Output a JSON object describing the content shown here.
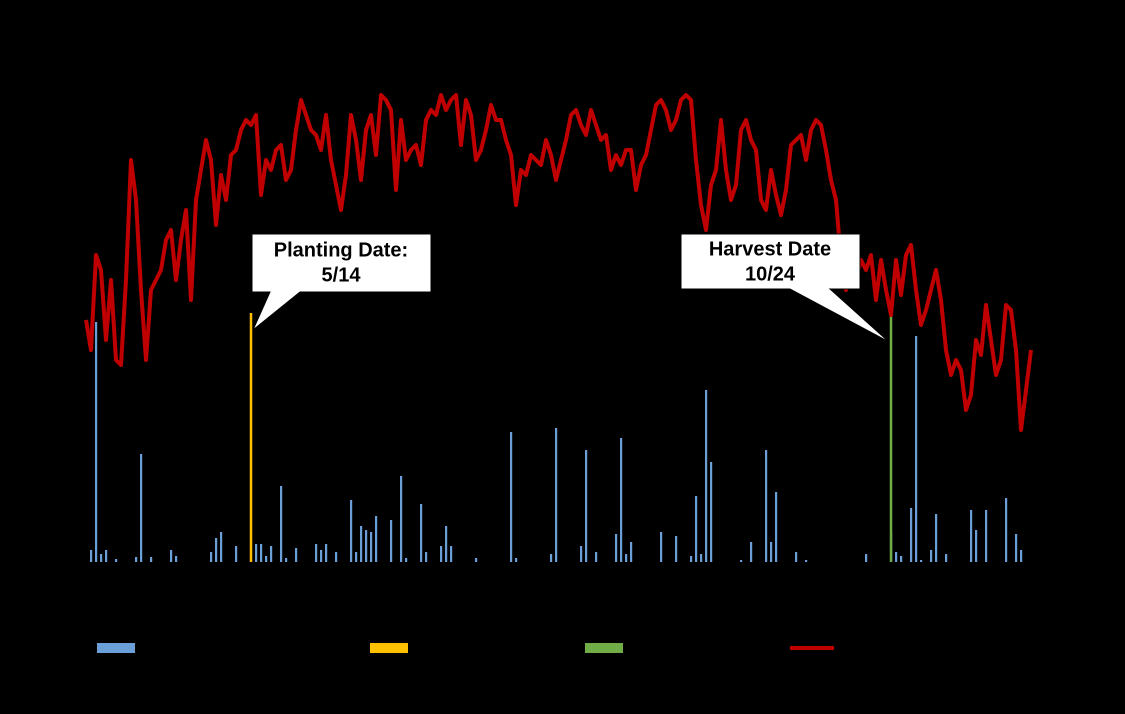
{
  "chart_data": {
    "type": "combo",
    "ylim": [
      0,
      500
    ],
    "series": [
      {
        "type": "bar",
        "color": "#6a9fd8",
        "values": [
          0,
          12,
          240,
          8,
          12,
          0,
          3,
          0,
          0,
          0,
          5,
          108,
          0,
          5,
          0,
          0,
          0,
          12,
          6,
          0,
          0,
          0,
          0,
          0,
          0,
          10,
          24,
          30,
          0,
          0,
          16,
          0,
          0,
          0,
          18,
          18,
          6,
          16,
          0,
          76,
          4,
          0,
          14,
          0,
          0,
          0,
          18,
          12,
          18,
          0,
          10,
          0,
          0,
          62,
          10,
          36,
          32,
          30,
          46,
          0,
          0,
          42,
          0,
          86,
          4,
          0,
          0,
          58,
          10,
          0,
          0,
          16,
          36,
          16,
          0,
          0,
          0,
          0,
          4,
          0,
          0,
          0,
          0,
          0,
          0,
          130,
          4,
          0,
          0,
          0,
          0,
          0,
          0,
          8,
          134,
          0,
          0,
          0,
          0,
          16,
          112,
          0,
          10,
          0,
          0,
          0,
          28,
          124,
          8,
          20,
          0,
          0,
          0,
          0,
          0,
          30,
          0,
          0,
          26,
          0,
          0,
          6,
          66,
          8,
          172,
          100,
          0,
          0,
          0,
          0,
          0,
          2,
          0,
          20,
          0,
          0,
          112,
          20,
          70,
          0,
          0,
          0,
          10,
          0,
          2,
          0,
          0,
          0,
          0,
          0,
          0,
          0,
          0,
          0,
          0,
          0,
          8,
          0,
          0,
          0,
          0,
          30,
          10,
          6,
          0,
          54,
          226,
          2,
          0,
          12,
          48,
          0,
          8,
          0,
          0,
          0,
          0,
          52,
          32,
          0,
          52,
          0,
          0,
          0,
          64,
          0,
          28,
          12,
          0,
          0
        ]
      },
      {
        "type": "marker",
        "color": "#ffc000",
        "values": [
          null,
          null,
          null,
          null,
          null,
          null,
          null,
          null,
          null,
          null,
          null,
          null,
          null,
          null,
          null,
          null,
          null,
          null,
          null,
          null,
          null,
          null,
          null,
          null,
          null,
          null,
          null,
          null,
          null,
          null,
          null,
          null,
          null,
          249,
          null,
          null,
          null,
          null,
          null,
          null,
          null,
          null,
          null,
          null,
          null,
          null,
          null,
          null,
          null,
          null,
          null,
          null,
          null,
          null,
          null,
          null,
          null,
          null,
          null,
          null,
          null,
          null,
          null,
          null,
          null,
          null,
          null,
          null,
          null,
          null,
          null,
          null,
          null,
          null,
          null,
          null,
          null,
          null,
          null,
          null,
          null,
          null,
          null,
          null,
          null,
          null,
          null,
          null,
          null,
          null,
          null,
          null,
          null,
          null,
          null,
          null,
          null,
          null,
          null,
          null,
          null,
          null,
          null,
          null,
          null,
          null,
          null,
          null,
          null,
          null,
          null,
          null,
          null,
          null,
          null,
          null,
          null,
          null,
          null,
          null,
          null,
          null,
          null,
          null,
          null,
          null,
          null,
          null,
          null,
          null,
          null,
          null,
          null,
          null,
          null,
          null,
          null,
          null,
          null,
          null,
          null,
          null,
          null,
          null,
          null,
          null,
          null,
          null,
          null,
          null,
          null,
          null,
          null,
          null,
          null,
          null,
          null,
          null,
          null,
          null,
          null,
          null,
          null,
          null,
          null,
          null,
          null,
          null,
          null,
          null,
          null,
          null,
          null,
          null,
          null,
          null,
          null,
          null,
          null,
          null,
          null,
          null,
          null,
          null,
          null,
          null,
          null,
          null,
          null,
          null
        ]
      },
      {
        "type": "marker",
        "color": "#70ad47",
        "values": [
          null,
          null,
          null,
          null,
          null,
          null,
          null,
          null,
          null,
          null,
          null,
          null,
          null,
          null,
          null,
          null,
          null,
          null,
          null,
          null,
          null,
          null,
          null,
          null,
          null,
          null,
          null,
          null,
          null,
          null,
          null,
          null,
          null,
          null,
          null,
          null,
          null,
          null,
          null,
          null,
          null,
          null,
          null,
          null,
          null,
          null,
          null,
          null,
          null,
          null,
          null,
          null,
          null,
          null,
          null,
          null,
          null,
          null,
          null,
          null,
          null,
          null,
          null,
          null,
          null,
          null,
          null,
          null,
          null,
          null,
          null,
          null,
          null,
          null,
          null,
          null,
          null,
          null,
          null,
          null,
          null,
          null,
          null,
          null,
          null,
          null,
          null,
          null,
          null,
          null,
          null,
          null,
          null,
          null,
          null,
          null,
          null,
          null,
          null,
          null,
          null,
          null,
          null,
          null,
          null,
          null,
          null,
          null,
          null,
          null,
          null,
          null,
          null,
          null,
          null,
          null,
          null,
          null,
          null,
          null,
          null,
          null,
          null,
          null,
          null,
          null,
          null,
          null,
          null,
          null,
          null,
          null,
          null,
          null,
          null,
          null,
          null,
          null,
          null,
          null,
          null,
          null,
          null,
          null,
          null,
          null,
          null,
          null,
          null,
          null,
          null,
          null,
          null,
          null,
          null,
          null,
          null,
          null,
          null,
          null,
          null,
          249,
          null,
          null,
          null,
          null,
          null,
          null,
          null,
          null,
          null,
          null,
          null,
          null,
          null,
          null,
          null,
          null,
          null,
          null,
          null,
          null,
          null,
          null,
          null,
          null,
          null,
          null,
          null,
          null
        ]
      },
      {
        "type": "line",
        "color": "#c00000",
        "values": [
          242,
          212,
          307,
          292,
          222,
          282,
          202,
          197,
          282,
          402,
          362,
          272,
          202,
          272,
          282,
          292,
          322,
          332,
          282,
          322,
          352,
          262,
          362,
          392,
          422,
          402,
          337,
          387,
          362,
          407,
          412,
          432,
          442,
          437,
          447,
          367,
          402,
          392,
          412,
          417,
          382,
          392,
          432,
          462,
          447,
          432,
          427,
          412,
          447,
          402,
          377,
          352,
          387,
          447,
          422,
          382,
          432,
          447,
          407,
          467,
          462,
          452,
          372,
          442,
          402,
          412,
          417,
          397,
          442,
          452,
          447,
          467,
          452,
          462,
          467,
          417,
          462,
          447,
          402,
          412,
          432,
          457,
          442,
          442,
          422,
          407,
          357,
          392,
          387,
          407,
          402,
          397,
          422,
          407,
          382,
          402,
          422,
          447,
          452,
          437,
          427,
          452,
          437,
          422,
          427,
          392,
          407,
          397,
          412,
          412,
          372,
          397,
          407,
          432,
          457,
          462,
          452,
          432,
          442,
          462,
          467,
          462,
          402,
          357,
          332,
          377,
          392,
          442,
          392,
          362,
          377,
          432,
          442,
          422,
          412,
          362,
          352,
          392,
          367,
          347,
          372,
          417,
          422,
          427,
          402,
          432,
          442,
          437,
          412,
          382,
          362,
          302,
          272,
          292,
          282,
          302,
          292,
          307,
          262,
          302,
          272,
          247,
          302,
          267,
          307,
          317,
          272,
          237,
          252,
          272,
          292,
          262,
          212,
          187,
          202,
          192,
          152,
          167,
          222,
          207,
          257,
          222,
          187,
          202,
          257,
          252,
          212,
          132,
          172,
          212
        ]
      }
    ],
    "annotations": [
      {
        "lines": [
          "Planting Date:",
          "5/14"
        ]
      },
      {
        "lines": [
          "Harvest Date",
          "10/24"
        ]
      }
    ]
  }
}
